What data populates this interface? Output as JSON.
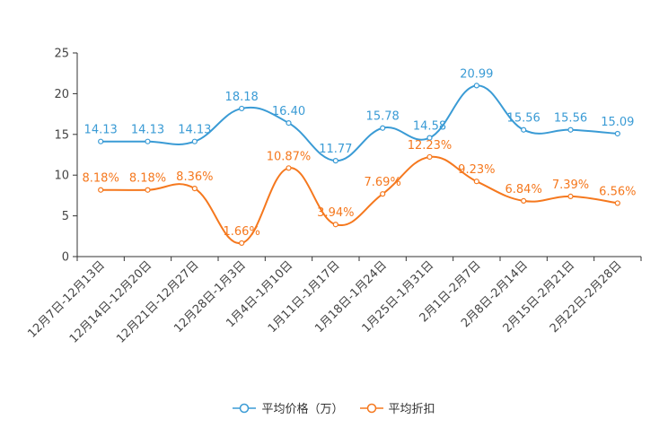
{
  "chart_data": {
    "type": "line",
    "categories": [
      "12月7日-12月13日",
      "12月14日-12月20日",
      "12月21日-12月27日",
      "12月28日-1月3日",
      "1月4日-1月10日",
      "1月11日-1月17日",
      "1月18日-1月24日",
      "1月25日-1月31日",
      "2月1日-2月7日",
      "2月8日-2月14日",
      "2月15日-2月21日",
      "2月22日-2月28日"
    ],
    "series": [
      {
        "name": "平均价格（万）",
        "color": "#3a9bd5",
        "values": [
          14.13,
          14.13,
          14.13,
          18.18,
          16.4,
          11.77,
          15.78,
          14.58,
          20.99,
          15.56,
          15.56,
          15.09
        ],
        "labels": [
          "14.13",
          "14.13",
          "14.13",
          "18.18",
          "16.40",
          "11.77",
          "15.78",
          "14.58",
          "20.99",
          "15.56",
          "15.56",
          "15.09"
        ]
      },
      {
        "name": "平均折扣",
        "color": "#f5781e",
        "values": [
          8.18,
          8.18,
          8.36,
          1.66,
          10.87,
          3.94,
          7.69,
          12.23,
          9.23,
          6.84,
          7.39,
          6.56
        ],
        "labels": [
          "8.18%",
          "8.18%",
          "8.36%",
          "1.66%",
          "10.87%",
          "3.94%",
          "7.69%",
          "12.23%",
          "9.23%",
          "6.84%",
          "7.39%",
          "6.56%"
        ]
      }
    ],
    "y_ticks": [
      "0",
      "5",
      "10",
      "15",
      "20",
      "25"
    ],
    "ylim": [
      0,
      25
    ],
    "legend_position": "bottom-center"
  }
}
